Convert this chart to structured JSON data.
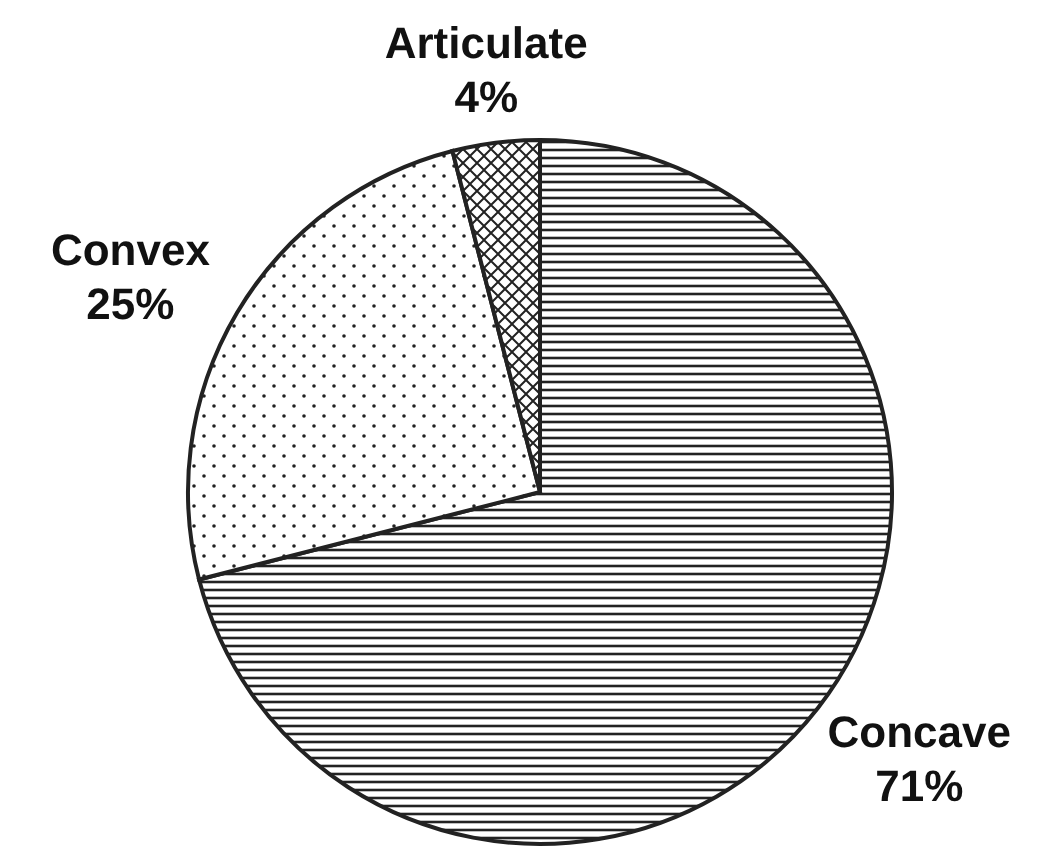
{
  "chart_data": {
    "type": "pie",
    "categories": [
      "Concave",
      "Convex",
      "Articulate"
    ],
    "values": [
      71,
      25,
      4
    ],
    "colors": [
      "#222222",
      "#222222",
      "#222222"
    ],
    "value_labels": [
      "71%",
      "25%",
      "4%"
    ]
  }
}
